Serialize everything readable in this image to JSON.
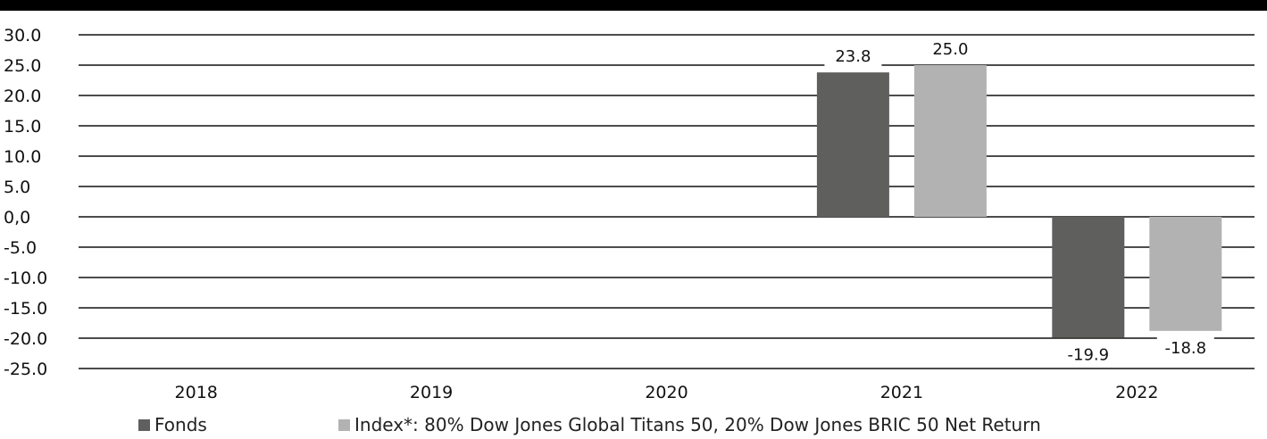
{
  "chart_data": {
    "type": "bar",
    "categories": [
      "2018",
      "2019",
      "2020",
      "2021",
      "2022"
    ],
    "series": [
      {
        "name": "Fonds",
        "values": [
          null,
          null,
          null,
          23.8,
          -19.9
        ],
        "color": "#5f5f5d"
      },
      {
        "name": "Index*: 80% Dow Jones Global Titans 50, 20% Dow Jones BRIC 50 Net Return",
        "values": [
          null,
          null,
          null,
          25.0,
          -18.8
        ],
        "color": "#b2b2b2"
      }
    ],
    "data_labels": [
      [
        null,
        null,
        null,
        "23.8",
        "-19.9"
      ],
      [
        null,
        null,
        null,
        "25.0",
        "-18.8"
      ]
    ],
    "ylim": [
      -25,
      30
    ],
    "yticks": [
      30,
      25,
      20,
      15,
      10,
      5,
      0,
      -5,
      -10,
      -15,
      -20,
      -25
    ],
    "ytick_labels": [
      "30.0",
      "25.0",
      "20.0",
      "15.0",
      "10.0",
      "5.0",
      "0,0",
      "-5.0",
      "-10.0",
      "-15.0",
      "-20.0",
      "-25.0"
    ],
    "grid": true,
    "legend": "bottom",
    "title": "",
    "xlabel": "",
    "ylabel": ""
  }
}
